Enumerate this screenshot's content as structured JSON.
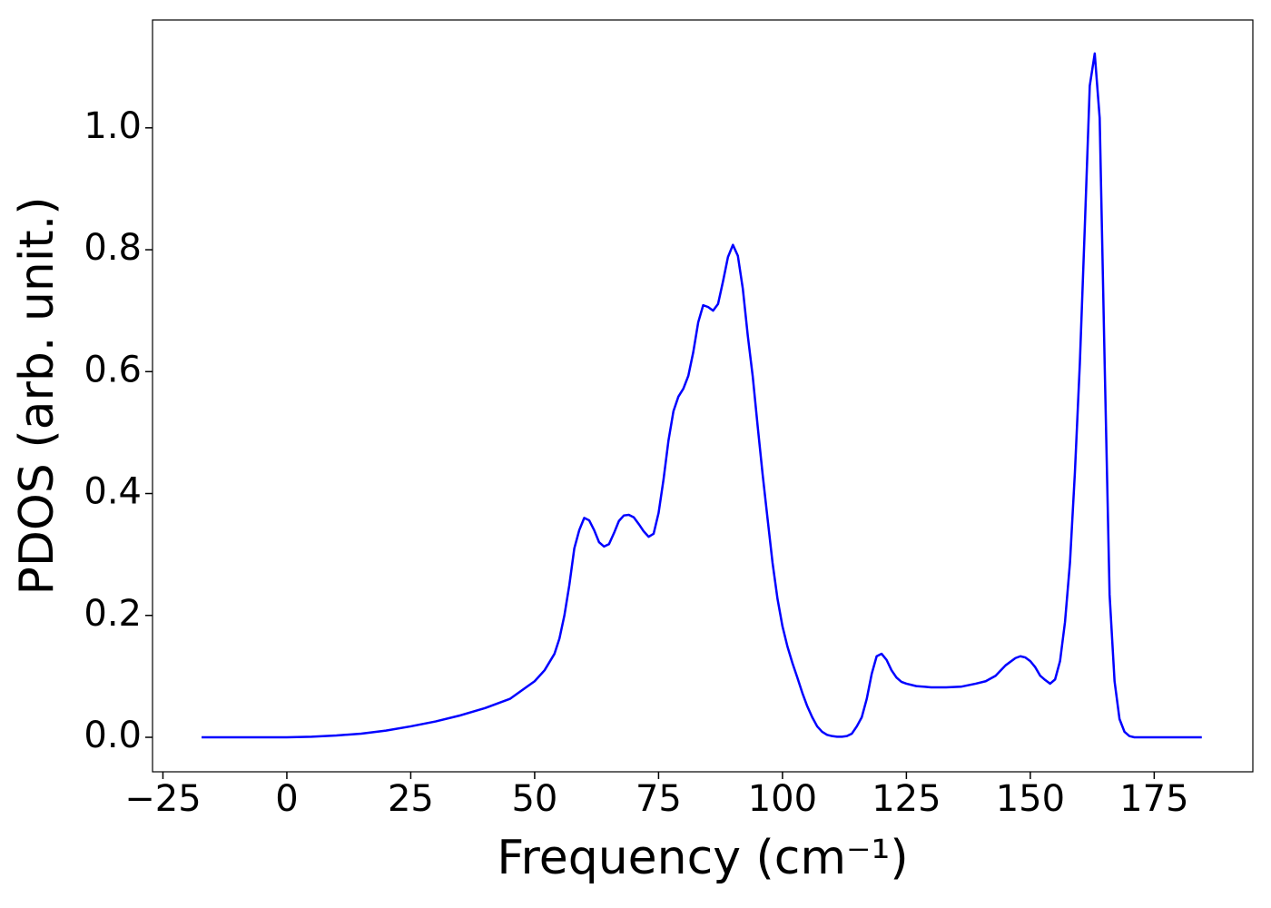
{
  "chart_data": {
    "type": "line",
    "xlabel": "Frequency (cm⁻¹)",
    "ylabel": "PDOS (arb. unit.)",
    "color": "#0000ff",
    "x": [
      -17.2,
      -10,
      -5,
      0,
      5,
      10,
      15,
      20,
      25,
      30,
      35,
      40,
      45,
      50,
      52,
      54,
      55,
      56,
      57,
      58,
      59,
      60,
      61,
      62,
      63,
      64,
      65,
      66,
      67,
      68,
      69,
      70,
      71,
      72,
      73,
      74,
      75,
      76,
      77,
      78,
      79,
      80,
      81,
      82,
      83,
      84,
      85,
      86,
      87,
      88,
      89,
      90,
      91,
      92,
      93,
      94,
      95,
      96,
      97,
      98,
      99,
      100,
      101,
      102,
      103,
      104,
      105,
      106,
      107,
      108,
      109,
      110,
      111,
      112,
      113,
      114,
      115,
      116,
      117,
      118,
      119,
      120,
      121,
      122,
      123,
      124,
      125,
      127,
      130,
      133,
      136,
      139,
      141,
      143,
      145,
      147,
      148,
      149,
      150,
      151,
      152,
      153,
      154,
      155,
      156,
      157,
      158,
      159,
      160,
      161,
      162,
      163,
      164,
      165,
      166,
      167,
      168,
      169,
      170,
      171,
      175,
      180,
      184.6
    ],
    "values": [
      0,
      0,
      0,
      0,
      0.001,
      0.003,
      0.006,
      0.011,
      0.018,
      0.026,
      0.036,
      0.048,
      0.063,
      0.092,
      0.11,
      0.137,
      0.162,
      0.2,
      0.25,
      0.31,
      0.34,
      0.36,
      0.356,
      0.34,
      0.32,
      0.313,
      0.317,
      0.335,
      0.355,
      0.364,
      0.365,
      0.361,
      0.35,
      0.338,
      0.329,
      0.334,
      0.368,
      0.423,
      0.487,
      0.535,
      0.559,
      0.572,
      0.593,
      0.632,
      0.681,
      0.709,
      0.706,
      0.7,
      0.711,
      0.748,
      0.788,
      0.808,
      0.79,
      0.736,
      0.659,
      0.592,
      0.51,
      0.431,
      0.358,
      0.286,
      0.227,
      0.182,
      0.149,
      0.122,
      0.098,
      0.073,
      0.051,
      0.033,
      0.018,
      0.009,
      0.004,
      0.002,
      0.001,
      0.001,
      0.002,
      0.006,
      0.018,
      0.033,
      0.063,
      0.104,
      0.133,
      0.137,
      0.127,
      0.11,
      0.098,
      0.091,
      0.088,
      0.084,
      0.082,
      0.082,
      0.083,
      0.088,
      0.092,
      0.101,
      0.118,
      0.13,
      0.133,
      0.131,
      0.125,
      0.115,
      0.101,
      0.094,
      0.088,
      0.095,
      0.125,
      0.189,
      0.286,
      0.435,
      0.614,
      0.838,
      1.069,
      1.122,
      1.016,
      0.614,
      0.234,
      0.092,
      0.03,
      0.009,
      0.002,
      0,
      0,
      0,
      0
    ],
    "xlim": [
      -27.1,
      194.9
    ],
    "ylim": [
      -0.0566,
      1.177
    ],
    "xticks": [
      {
        "value": -25,
        "label": "−25"
      },
      0,
      25,
      50,
      75,
      100,
      125,
      150,
      175
    ],
    "yticks": [
      {
        "value": 0,
        "label": "0.0"
      },
      {
        "value": 0.2,
        "label": "0.2"
      },
      {
        "value": 0.4,
        "label": "0.4"
      },
      {
        "value": 0.6,
        "label": "0.6"
      },
      {
        "value": 0.8,
        "label": "0.8"
      },
      {
        "value": 1.0,
        "label": "1.0"
      }
    ]
  }
}
